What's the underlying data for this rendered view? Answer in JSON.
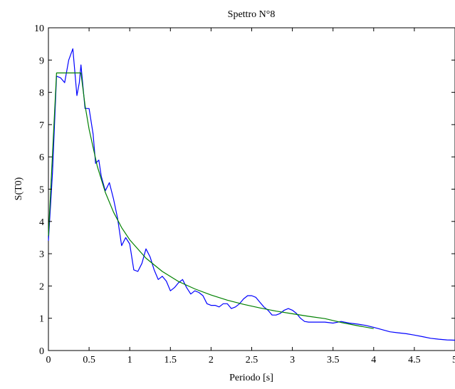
{
  "chart_data": {
    "type": "line",
    "title": "Spettro N°8",
    "xlabel": "Periodo [s]",
    "ylabel": "S(T0)",
    "xlim": [
      0,
      5
    ],
    "ylim": [
      0,
      10
    ],
    "xticks": [
      0,
      0.5,
      1,
      1.5,
      2,
      2.5,
      3,
      3.5,
      4,
      4.5,
      5
    ],
    "xtick_labels": [
      "0",
      "0.5",
      "1",
      "1.5",
      "2",
      "2.5",
      "3",
      "3.5",
      "4",
      "4.5",
      "5"
    ],
    "yticks": [
      0,
      1,
      2,
      3,
      4,
      5,
      6,
      7,
      8,
      9,
      10
    ],
    "ytick_labels": [
      "0",
      "1",
      "2",
      "3",
      "4",
      "5",
      "6",
      "7",
      "8",
      "9",
      "10"
    ],
    "grid": false,
    "legend": "none",
    "series": [
      {
        "color": "#0000ff",
        "points": [
          [
            0,
            3.4
          ],
          [
            0.05,
            5.5
          ],
          [
            0.1,
            8.5
          ],
          [
            0.15,
            8.45
          ],
          [
            0.2,
            8.3
          ],
          [
            0.25,
            9.0
          ],
          [
            0.3,
            9.35
          ],
          [
            0.35,
            7.9
          ],
          [
            0.38,
            8.3
          ],
          [
            0.4,
            8.85
          ],
          [
            0.45,
            7.5
          ],
          [
            0.5,
            7.5
          ],
          [
            0.55,
            6.7
          ],
          [
            0.58,
            5.8
          ],
          [
            0.62,
            5.9
          ],
          [
            0.65,
            5.4
          ],
          [
            0.7,
            4.95
          ],
          [
            0.75,
            5.2
          ],
          [
            0.8,
            4.7
          ],
          [
            0.85,
            4.1
          ],
          [
            0.9,
            3.25
          ],
          [
            0.95,
            3.5
          ],
          [
            1.0,
            3.3
          ],
          [
            1.05,
            2.5
          ],
          [
            1.1,
            2.45
          ],
          [
            1.15,
            2.7
          ],
          [
            1.2,
            3.15
          ],
          [
            1.25,
            2.9
          ],
          [
            1.3,
            2.5
          ],
          [
            1.35,
            2.2
          ],
          [
            1.4,
            2.3
          ],
          [
            1.45,
            2.15
          ],
          [
            1.5,
            1.85
          ],
          [
            1.55,
            1.95
          ],
          [
            1.6,
            2.1
          ],
          [
            1.65,
            2.2
          ],
          [
            1.7,
            1.95
          ],
          [
            1.75,
            1.75
          ],
          [
            1.8,
            1.85
          ],
          [
            1.85,
            1.8
          ],
          [
            1.9,
            1.7
          ],
          [
            1.95,
            1.45
          ],
          [
            2.0,
            1.4
          ],
          [
            2.05,
            1.4
          ],
          [
            2.1,
            1.35
          ],
          [
            2.15,
            1.45
          ],
          [
            2.2,
            1.45
          ],
          [
            2.25,
            1.3
          ],
          [
            2.3,
            1.35
          ],
          [
            2.35,
            1.45
          ],
          [
            2.4,
            1.6
          ],
          [
            2.45,
            1.7
          ],
          [
            2.5,
            1.7
          ],
          [
            2.55,
            1.65
          ],
          [
            2.6,
            1.5
          ],
          [
            2.65,
            1.35
          ],
          [
            2.7,
            1.25
          ],
          [
            2.75,
            1.1
          ],
          [
            2.8,
            1.1
          ],
          [
            2.85,
            1.15
          ],
          [
            2.9,
            1.25
          ],
          [
            2.95,
            1.3
          ],
          [
            3.0,
            1.25
          ],
          [
            3.05,
            1.15
          ],
          [
            3.1,
            1.0
          ],
          [
            3.15,
            0.9
          ],
          [
            3.2,
            0.88
          ],
          [
            3.3,
            0.88
          ],
          [
            3.4,
            0.88
          ],
          [
            3.5,
            0.85
          ],
          [
            3.6,
            0.9
          ],
          [
            3.7,
            0.85
          ],
          [
            3.8,
            0.82
          ],
          [
            3.9,
            0.78
          ],
          [
            4.0,
            0.72
          ],
          [
            4.1,
            0.65
          ],
          [
            4.2,
            0.58
          ],
          [
            4.3,
            0.55
          ],
          [
            4.4,
            0.52
          ],
          [
            4.5,
            0.48
          ],
          [
            4.6,
            0.43
          ],
          [
            4.7,
            0.38
          ],
          [
            4.8,
            0.35
          ],
          [
            4.9,
            0.33
          ],
          [
            5.0,
            0.32
          ]
        ]
      },
      {
        "color": "#008000",
        "points": [
          [
            0,
            3.55
          ],
          [
            0.1,
            8.6
          ],
          [
            0.4,
            8.6
          ],
          [
            0.45,
            7.6
          ],
          [
            0.5,
            6.86
          ],
          [
            0.6,
            5.72
          ],
          [
            0.7,
            4.9
          ],
          [
            0.8,
            4.29
          ],
          [
            0.9,
            3.81
          ],
          [
            1.0,
            3.43
          ],
          [
            1.2,
            2.86
          ],
          [
            1.4,
            2.45
          ],
          [
            1.6,
            2.14
          ],
          [
            1.8,
            1.91
          ],
          [
            2.0,
            1.72
          ],
          [
            2.2,
            1.56
          ],
          [
            2.4,
            1.43
          ],
          [
            2.6,
            1.32
          ],
          [
            2.8,
            1.22
          ],
          [
            3.0,
            1.14
          ],
          [
            3.2,
            1.06
          ],
          [
            3.4,
            0.99
          ],
          [
            3.6,
            0.87
          ],
          [
            3.8,
            0.77
          ],
          [
            4.0,
            0.68
          ]
        ]
      }
    ]
  }
}
